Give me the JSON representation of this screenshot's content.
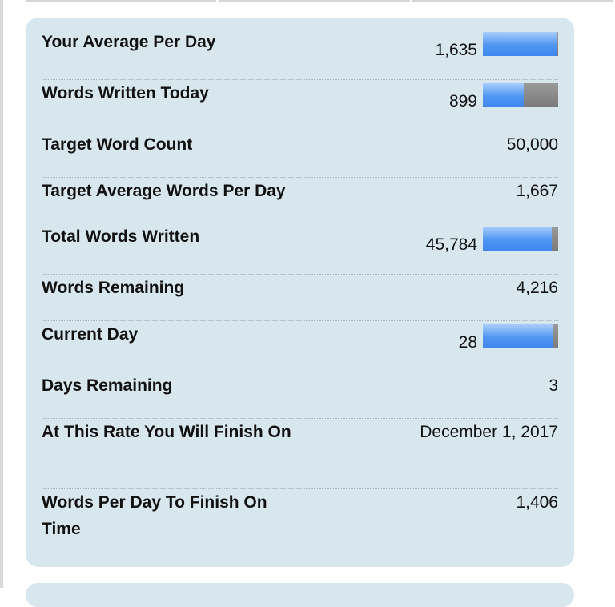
{
  "colors": {
    "card_background": "#d8e7ee",
    "bar_fill": "#4f96f2",
    "bar_remaining": "#808080",
    "divider": "#a7b4bb"
  },
  "stats": [
    {
      "label": "Your Average Per Day",
      "value": "1,635",
      "bar_fraction": 0.98
    },
    {
      "label": "Words Written Today",
      "value": "899",
      "bar_fraction": 0.54
    },
    {
      "label": "Target Word Count",
      "value": "50,000"
    },
    {
      "label": "Target Average Words Per Day",
      "value": "1,667"
    },
    {
      "label": "Total Words Written",
      "value": "45,784",
      "bar_fraction": 0.916
    },
    {
      "label": "Words Remaining",
      "value": "4,216"
    },
    {
      "label": "Current Day",
      "value": "28",
      "bar_fraction": 0.933
    },
    {
      "label": "Days Remaining",
      "value": "3"
    },
    {
      "label": "At This Rate You Will Finish On",
      "value": "December 1, 2017"
    },
    {
      "label": "Words Per Day To Finish On Time",
      "value": "1,406"
    }
  ]
}
